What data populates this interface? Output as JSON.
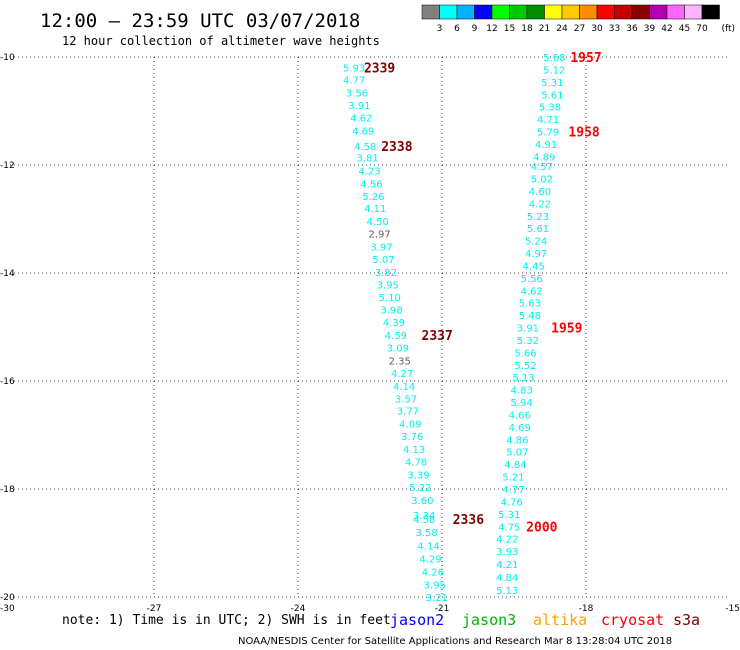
{
  "title": "12:00 — 23:59 UTC 03/07/2018",
  "subtitle": "12 hour collection of altimeter wave heights",
  "note": "note: 1) Time is in UTC; 2) SWH is in feet",
  "footer": "NOAA/NESDIS Center for Satellite Applications and Research    Mar  8 13:28:04 UTC 2018",
  "colors": {
    "cyan": "#00f0f0",
    "gray": "#606060",
    "cryosat": "#ff0000",
    "s3a": "#800000"
  },
  "legend": {
    "colors": [
      "#808080",
      "#00ffff",
      "#00b4ff",
      "#0000ff",
      "#00ff00",
      "#00c800",
      "#008c00",
      "#ffff00",
      "#ffc800",
      "#ff8c00",
      "#ff0000",
      "#c80000",
      "#8c0000",
      "#b400b4",
      "#ff64ff",
      "#ffb4ff",
      "#000000"
    ],
    "labels": [
      "3",
      "6",
      "9",
      "12",
      "15",
      "18",
      "21",
      "24",
      "27",
      "30",
      "33",
      "36",
      "39",
      "42",
      "45",
      "70"
    ],
    "unit": "(ft)"
  },
  "satellites": [
    {
      "name": "jason2",
      "color": "#0000ff"
    },
    {
      "name": "jason3",
      "color": "#00b400"
    },
    {
      "name": "altika",
      "color": "#ffa000"
    },
    {
      "name": "cryosat",
      "color": "#ff0000"
    },
    {
      "name": "s3a",
      "color": "#800000"
    }
  ],
  "chart_data": {
    "type": "scatter",
    "title": "12:00 — 23:59 UTC 03/07/2018",
    "subtitle": "12 hour collection of altimeter wave heights",
    "xlim": [
      -30,
      -15
    ],
    "ylim": [
      -20,
      -10
    ],
    "xticks": [
      -30,
      -27,
      -24,
      -21,
      -18,
      -15
    ],
    "yticks": [
      -10,
      -12,
      -14,
      -16,
      -18,
      -20
    ],
    "xtick_labels": [
      "-30",
      "-27",
      "-24",
      "-21",
      "-18",
      "-15"
    ],
    "ytick_labels": [
      "-10",
      "-12",
      "-14",
      "-16",
      "-18",
      "-20"
    ],
    "grid": true,
    "series": [
      {
        "name": "s3a",
        "points": [
          {
            "x": -22.83,
            "y": -10.19,
            "v": "5.93",
            "c": "cyan"
          },
          {
            "x": -22.83,
            "y": -10.42,
            "v": "4.77",
            "c": "cyan"
          },
          {
            "x": -22.77,
            "y": -10.66,
            "v": "3.56",
            "c": "cyan"
          },
          {
            "x": -22.72,
            "y": -10.89,
            "v": "3.91",
            "c": "cyan"
          },
          {
            "x": -22.68,
            "y": -11.12,
            "v": "4.62",
            "c": "cyan"
          },
          {
            "x": -22.64,
            "y": -11.36,
            "v": "4.69",
            "c": "cyan"
          },
          {
            "x": -22.6,
            "y": -11.65,
            "v": "4.58",
            "c": "cyan"
          },
          {
            "x": -22.55,
            "y": -11.86,
            "v": "3.81",
            "c": "cyan"
          },
          {
            "x": -22.51,
            "y": -12.1,
            "v": "4.23",
            "c": "cyan"
          },
          {
            "x": -22.47,
            "y": -12.34,
            "v": "4.56",
            "c": "cyan"
          },
          {
            "x": -22.43,
            "y": -12.57,
            "v": "5.26",
            "c": "cyan"
          },
          {
            "x": -22.39,
            "y": -12.8,
            "v": "4.11",
            "c": "cyan"
          },
          {
            "x": -22.34,
            "y": -13.04,
            "v": "4.50",
            "c": "cyan"
          },
          {
            "x": -22.3,
            "y": -13.27,
            "v": "2.97",
            "c": "gray"
          },
          {
            "x": -22.26,
            "y": -13.51,
            "v": "3.97",
            "c": "cyan"
          },
          {
            "x": -22.22,
            "y": -13.74,
            "v": "5.07",
            "c": "cyan"
          },
          {
            "x": -22.17,
            "y": -13.98,
            "v": "3.82",
            "c": "cyan"
          },
          {
            "x": -22.13,
            "y": -14.21,
            "v": "3.95",
            "c": "cyan"
          },
          {
            "x": -22.09,
            "y": -14.44,
            "v": "5.10",
            "c": "cyan"
          },
          {
            "x": -22.05,
            "y": -14.68,
            "v": "3.98",
            "c": "cyan"
          },
          {
            "x": -22.0,
            "y": -14.91,
            "v": "4.39",
            "c": "cyan"
          },
          {
            "x": -21.96,
            "y": -15.15,
            "v": "4.59",
            "c": "cyan"
          },
          {
            "x": -21.92,
            "y": -15.38,
            "v": "3.09",
            "c": "cyan"
          },
          {
            "x": -21.88,
            "y": -15.62,
            "v": "2.35",
            "c": "gray"
          },
          {
            "x": -21.83,
            "y": -15.85,
            "v": "4.27",
            "c": "cyan"
          },
          {
            "x": -21.79,
            "y": -16.09,
            "v": "4.14",
            "c": "cyan"
          },
          {
            "x": -21.75,
            "y": -16.32,
            "v": "3.57",
            "c": "cyan"
          },
          {
            "x": -21.71,
            "y": -16.55,
            "v": "3.77",
            "c": "cyan"
          },
          {
            "x": -21.66,
            "y": -16.79,
            "v": "4.09",
            "c": "cyan"
          },
          {
            "x": -21.62,
            "y": -17.02,
            "v": "3.76",
            "c": "cyan"
          },
          {
            "x": -21.58,
            "y": -17.26,
            "v": "4.13",
            "c": "cyan"
          },
          {
            "x": -21.54,
            "y": -17.49,
            "v": "4.78",
            "c": "cyan"
          },
          {
            "x": -21.49,
            "y": -17.73,
            "v": "3.39",
            "c": "cyan"
          },
          {
            "x": -21.45,
            "y": -17.96,
            "v": "5.22",
            "c": "cyan"
          },
          {
            "x": -21.41,
            "y": -18.2,
            "v": "3.60",
            "c": "cyan"
          },
          {
            "x": -21.37,
            "y": -18.48,
            "v": "3.34",
            "c": "cyan"
          },
          {
            "x": -21.37,
            "y": -18.56,
            "v": "4.58",
            "c": "cyan"
          },
          {
            "x": -21.32,
            "y": -18.8,
            "v": "3.58",
            "c": "cyan"
          },
          {
            "x": -21.28,
            "y": -19.05,
            "v": "4.14",
            "c": "cyan"
          },
          {
            "x": -21.24,
            "y": -19.29,
            "v": "4.29",
            "c": "cyan"
          },
          {
            "x": -21.19,
            "y": -19.53,
            "v": "4.26",
            "c": "cyan"
          },
          {
            "x": -21.15,
            "y": -19.77,
            "v": "3.95",
            "c": "cyan"
          },
          {
            "x": -21.11,
            "y": -20.0,
            "v": "3.21",
            "c": "cyan"
          }
        ]
      },
      {
        "name": "cryosat",
        "points": [
          {
            "x": -18.66,
            "y": -10.0,
            "v": "5.68",
            "c": "cyan"
          },
          {
            "x": -18.66,
            "y": -10.23,
            "v": "5.12",
            "c": "cyan"
          },
          {
            "x": -18.7,
            "y": -10.46,
            "v": "5.31",
            "c": "cyan"
          },
          {
            "x": -18.7,
            "y": -10.69,
            "v": "5.61",
            "c": "cyan"
          },
          {
            "x": -18.75,
            "y": -10.92,
            "v": "5.38",
            "c": "cyan"
          },
          {
            "x": -18.79,
            "y": -11.15,
            "v": "4.71",
            "c": "cyan"
          },
          {
            "x": -18.79,
            "y": -11.38,
            "v": "5.79",
            "c": "cyan"
          },
          {
            "x": -18.83,
            "y": -11.61,
            "v": "4.91",
            "c": "cyan"
          },
          {
            "x": -18.87,
            "y": -11.84,
            "v": "4.89",
            "c": "cyan"
          },
          {
            "x": -18.92,
            "y": -12.02,
            "v": "4.57",
            "c": "cyan"
          },
          {
            "x": -18.92,
            "y": -12.25,
            "v": "5.02",
            "c": "cyan"
          },
          {
            "x": -18.96,
            "y": -12.48,
            "v": "4.60",
            "c": "cyan"
          },
          {
            "x": -18.96,
            "y": -12.71,
            "v": "4.22",
            "c": "cyan"
          },
          {
            "x": -19.0,
            "y": -12.94,
            "v": "5.23",
            "c": "cyan"
          },
          {
            "x": -19.0,
            "y": -13.17,
            "v": "5.61",
            "c": "cyan"
          },
          {
            "x": -19.04,
            "y": -13.4,
            "v": "5.24",
            "c": "cyan"
          },
          {
            "x": -19.04,
            "y": -13.63,
            "v": "4.97",
            "c": "cyan"
          },
          {
            "x": -19.09,
            "y": -13.86,
            "v": "4.45",
            "c": "cyan"
          },
          {
            "x": -19.13,
            "y": -14.09,
            "v": "5.56",
            "c": "cyan"
          },
          {
            "x": -19.13,
            "y": -14.32,
            "v": "4.62",
            "c": "cyan"
          },
          {
            "x": -19.17,
            "y": -14.55,
            "v": "5.63",
            "c": "cyan"
          },
          {
            "x": -19.17,
            "y": -14.78,
            "v": "5.48",
            "c": "cyan"
          },
          {
            "x": -19.21,
            "y": -15.01,
            "v": "3.91",
            "c": "cyan"
          },
          {
            "x": -19.21,
            "y": -15.24,
            "v": "5.32",
            "c": "cyan"
          },
          {
            "x": -19.26,
            "y": -15.47,
            "v": "5.66",
            "c": "cyan"
          },
          {
            "x": -19.26,
            "y": -15.7,
            "v": "5.52",
            "c": "cyan"
          },
          {
            "x": -19.3,
            "y": -15.93,
            "v": "5.13",
            "c": "cyan"
          },
          {
            "x": -19.34,
            "y": -16.16,
            "v": "4.83",
            "c": "cyan"
          },
          {
            "x": -19.34,
            "y": -16.39,
            "v": "5.94",
            "c": "cyan"
          },
          {
            "x": -19.38,
            "y": -16.62,
            "v": "4.66",
            "c": "cyan"
          },
          {
            "x": -19.38,
            "y": -16.85,
            "v": "4.69",
            "c": "cyan"
          },
          {
            "x": -19.43,
            "y": -17.08,
            "v": "4.86",
            "c": "cyan"
          },
          {
            "x": -19.43,
            "y": -17.31,
            "v": "5.07",
            "c": "cyan"
          },
          {
            "x": -19.47,
            "y": -17.54,
            "v": "4.84",
            "c": "cyan"
          },
          {
            "x": -19.51,
            "y": -17.77,
            "v": "5.21",
            "c": "cyan"
          },
          {
            "x": -19.51,
            "y": -18.0,
            "v": "4.77",
            "c": "cyan"
          },
          {
            "x": -19.55,
            "y": -18.23,
            "v": "4.76",
            "c": "cyan"
          },
          {
            "x": -19.6,
            "y": -18.46,
            "v": "5.31",
            "c": "cyan"
          },
          {
            "x": -19.6,
            "y": -18.69,
            "v": "4.75",
            "c": "cyan"
          },
          {
            "x": -19.64,
            "y": -18.92,
            "v": "4.22",
            "c": "cyan"
          },
          {
            "x": -19.64,
            "y": -19.15,
            "v": "3.93",
            "c": "cyan"
          },
          {
            "x": -19.64,
            "y": -19.39,
            "v": "4.21",
            "c": "cyan"
          },
          {
            "x": -19.64,
            "y": -19.63,
            "v": "4.84",
            "c": "cyan"
          },
          {
            "x": -19.64,
            "y": -19.87,
            "v": "5.13",
            "c": "cyan"
          }
        ]
      }
    ],
    "pass_labels": [
      {
        "x": -22.3,
        "y": -10.19,
        "v": "2339",
        "c": "s3a"
      },
      {
        "x": -21.94,
        "y": -11.65,
        "v": "2338",
        "c": "s3a"
      },
      {
        "x": -21.1,
        "y": -15.15,
        "v": "2337",
        "c": "s3a"
      },
      {
        "x": -20.45,
        "y": -18.56,
        "v": "2336",
        "c": "s3a"
      },
      {
        "x": -18.0,
        "y": -10.0,
        "v": "1957",
        "c": "cryosat"
      },
      {
        "x": -18.04,
        "y": -11.38,
        "v": "1958",
        "c": "cryosat"
      },
      {
        "x": -18.4,
        "y": -15.01,
        "v": "1959",
        "c": "cryosat"
      },
      {
        "x": -18.92,
        "y": -18.69,
        "v": "2000",
        "c": "cryosat"
      }
    ]
  }
}
